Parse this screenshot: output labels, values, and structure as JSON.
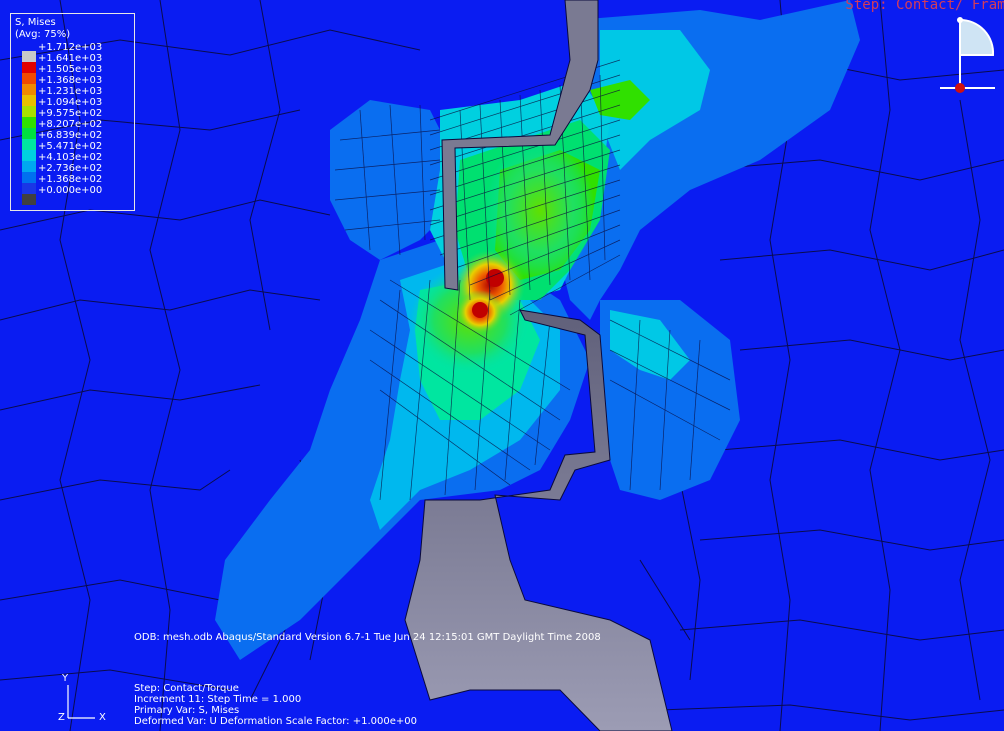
{
  "legend": {
    "title": "S, Mises",
    "subtitle": "(Avg: 75%)",
    "ticks": [
      "+1.712e+03",
      "+1.641e+03",
      "+1.505e+03",
      "+1.368e+03",
      "+1.231e+03",
      "+1.094e+03",
      "+9.575e+02",
      "+8.207e+02",
      "+6.839e+02",
      "+5.471e+02",
      "+4.103e+02",
      "+2.736e+02",
      "+1.368e+02",
      "+0.000e+00"
    ],
    "band_colors": [
      "#c8c8c8",
      "#e00000",
      "#f04a00",
      "#f08a00",
      "#e8c000",
      "#a8e000",
      "#30e000",
      "#00e040",
      "#00e6a0",
      "#00d0e0",
      "#00a8f0",
      "#0070f0",
      "#1a36e6",
      "#404040"
    ]
  },
  "header": {
    "step_title": "Step: Contact/ Frame"
  },
  "odb_line": "ODB: mesh.odb    Abaqus/Standard Version 6.7-1    Tue Jun 24 12:15:01 GMT Daylight Time 2008",
  "step_info": [
    "Step: Contact/Torque",
    "Increment     11: Step Time =    1.000",
    "Primary Var: S, Mises",
    "Deformed Var: U   Deformation Scale Factor: +1.000e+00"
  ],
  "triad": {
    "y": "Y",
    "z": "Z",
    "x": "X"
  },
  "colors": {
    "background": "#0a1cf2",
    "mesh_line": "#0a0a3c",
    "crack_gray": "#7e7e96",
    "step_title": "#d23c5a"
  }
}
